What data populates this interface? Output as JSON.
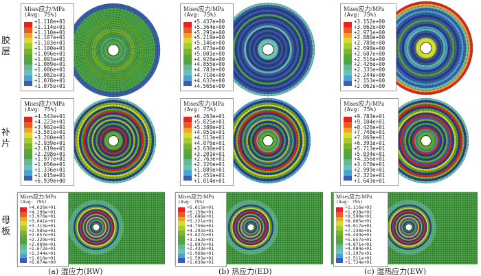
{
  "row_labels": [
    "胶层",
    "补片",
    "母板"
  ],
  "captions": [
    "(a) 湿应力(RW)",
    "(b) 热应力(ED)",
    "(c) 湿热应力(EW)"
  ],
  "legend_title": "Mises应力/MPa",
  "legend_avg": "(Avg: 75%)",
  "palette": [
    "#e42320",
    "#ef5a24",
    "#f5a02b",
    "#d6dc2c",
    "#a4cb36",
    "#79b531",
    "#5ea831",
    "#4da646",
    "#64ba8c",
    "#6cc2b7",
    "#48a3d9",
    "#3a5eb0",
    "#2d3990"
  ],
  "legends": [
    {
      "values": [
        "+1.118e+01",
        "+1.114e+01",
        "+1.110e+01",
        "+1.107e+01",
        "+1.103e+01",
        "+1.100e+01",
        "+1.096e+01",
        "+1.093e+01",
        "+1.089e+01",
        "+1.086e+01",
        "+1.082e+01",
        "+1.078e+01",
        "+1.075e+01"
      ]
    },
    {
      "values": [
        "+5.437e+00",
        "+5.364e+00",
        "+5.291e+00",
        "+5.219e+00",
        "+5.146e+00",
        "+5.073e+00",
        "+5.001e+00",
        "+4.928e+00",
        "+4.855e+00",
        "+4.783e+00",
        "+4.710e+00",
        "+4.637e+00",
        "+4.565e+00"
      ]
    },
    {
      "values": [
        "+3.152e+00",
        "+3.062e+00",
        "+2.971e+00",
        "+2.880e+00",
        "+2.789e+00",
        "+2.698e+00",
        "+2.607e+00",
        "+2.516e+00",
        "+2.426e+00",
        "+2.335e+00",
        "+2.244e+00",
        "+2.153e+00",
        "+2.062e+00"
      ]
    },
    {
      "values": [
        "+4.543e+01",
        "+4.223e+01",
        "+3.902e+01",
        "+3.581e+01",
        "+3.260e+01",
        "+2.939e+01",
        "+2.619e+01",
        "+2.298e+01",
        "+1.977e+01",
        "+1.656e+01",
        "+1.336e+01",
        "+1.015e+01",
        "+6.939e+00"
      ]
    },
    {
      "values": [
        "+6.263e+01",
        "+5.825e+01",
        "+5.388e+01",
        "+4.951e+01",
        "+4.513e+01",
        "+4.076e+01",
        "+3.638e+01",
        "+3.201e+01",
        "+2.763e+01",
        "+2.326e+01",
        "+1.889e+01",
        "+1.451e+01",
        "+1.014e+01"
      ]
    },
    {
      "values": [
        "+9.783e+01",
        "+9.104e+01",
        "+8.426e+01",
        "+7.748e+01",
        "+7.069e+01",
        "+6.391e+01",
        "+5.713e+01",
        "+5.034e+01",
        "+4.356e+01",
        "+3.678e+01",
        "+2.999e+01",
        "+2.321e+01",
        "+1.643e+01"
      ]
    },
    {
      "values": [
        "+4.626e+01",
        "+4.298e+01",
        "+3.970e+01",
        "+3.641e+01",
        "+3.313e+01",
        "+2.985e+01",
        "+2.657e+01",
        "+2.329e+01",
        "+2.000e+01",
        "+1.672e+01",
        "+1.344e+01",
        "+1.016e+01",
        "+6.874e+00"
      ]
    },
    {
      "values": [
        "+6.615e+01",
        "+6.150e+01",
        "+5.686e+01",
        "+5.221e+01",
        "+4.756e+01",
        "+4.292e+01",
        "+3.827e+01",
        "+3.362e+01",
        "+2.897e+01",
        "+2.433e+01",
        "+1.968e+01",
        "+1.503e+01",
        "+1.039e+01"
      ]
    },
    {
      "values": [
        "+1.116e+02",
        "+1.038e+02",
        "+9.590e+01",
        "+8.805e+01",
        "+8.017e+01",
        "+7.230e+01",
        "+6.444e+01",
        "+5.657e+01",
        "+4.871e+01",
        "+4.084e+01",
        "+3.297e+01",
        "+2.511e+01",
        "+1.724e+01"
      ]
    }
  ]
}
